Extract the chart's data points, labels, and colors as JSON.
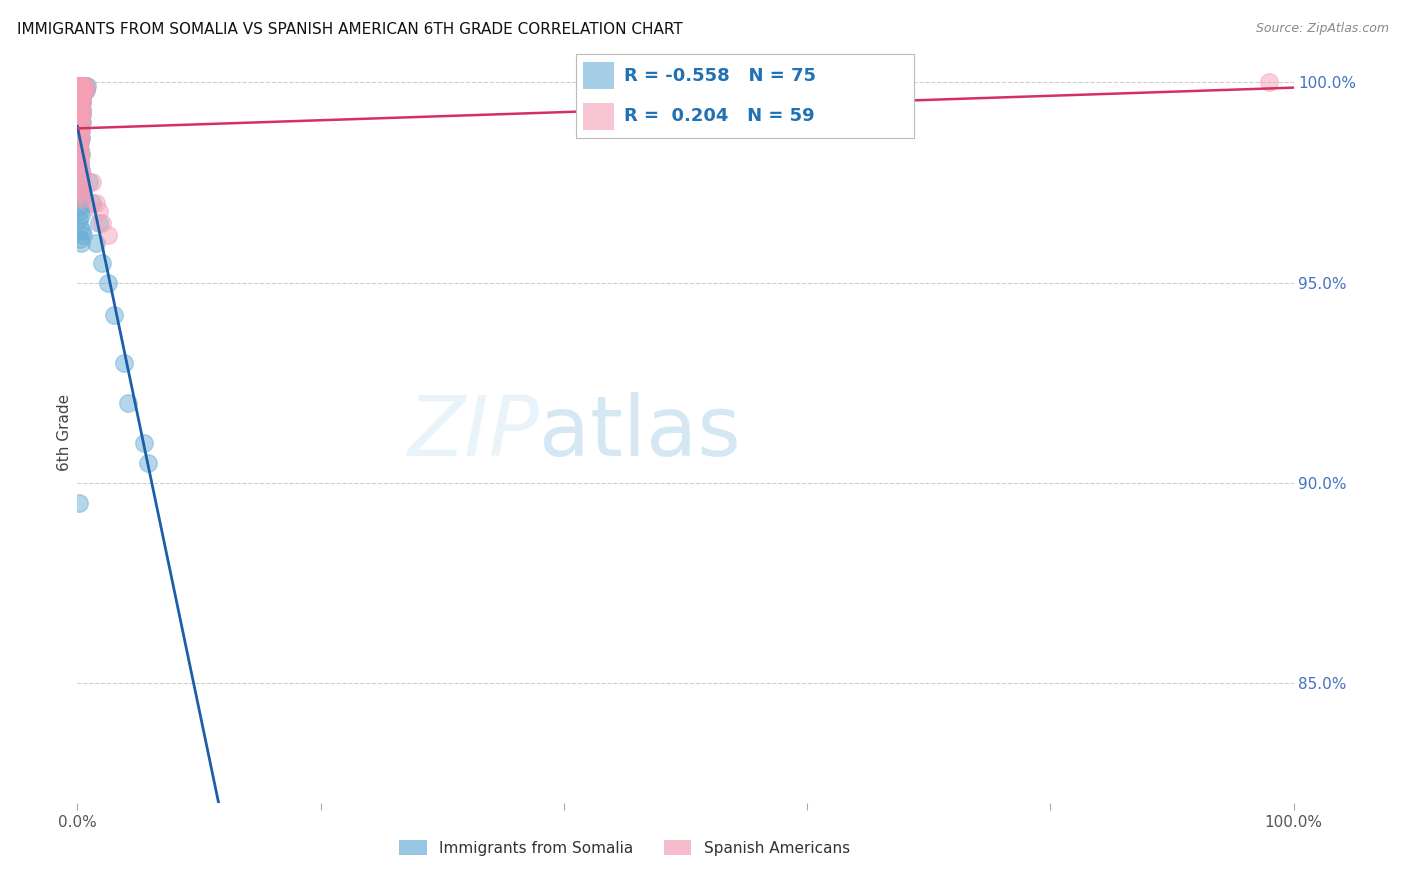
{
  "title": "IMMIGRANTS FROM SOMALIA VS SPANISH AMERICAN 6TH GRADE CORRELATION CHART",
  "source": "Source: ZipAtlas.com",
  "ylabel": "6th Grade",
  "R_somalia": -0.558,
  "N_somalia": 75,
  "R_spanish": 0.204,
  "N_spanish": 59,
  "somalia_color": "#6baed6",
  "spanish_color": "#f4a0b5",
  "somalia_line_color": "#1a5fa8",
  "spanish_line_color": "#d63060",
  "background_color": "#ffffff",
  "grid_color": "#c8c8c8",
  "somalia_x": [
    0.1,
    0.2,
    0.3,
    0.1,
    0.4,
    0.2,
    0.1,
    0.3,
    0.2,
    0.5,
    0.1,
    0.2,
    0.3,
    0.1,
    0.4,
    0.2,
    0.6,
    0.3,
    0.2,
    0.4,
    0.1,
    0.2,
    0.3,
    0.4,
    0.1,
    0.2,
    0.3,
    0.1,
    0.2,
    0.5,
    0.3,
    0.2,
    0.4,
    0.1,
    0.5,
    0.6,
    0.7,
    0.2,
    0.3,
    0.4,
    0.1,
    0.2,
    0.3,
    0.8,
    0.2,
    0.3,
    0.4,
    0.1,
    0.2,
    0.3,
    1.0,
    1.2,
    1.5,
    1.8,
    2.0,
    2.5,
    3.0,
    3.8,
    0.1,
    0.2,
    0.3,
    0.4,
    0.1,
    0.2,
    0.3,
    4.2,
    0.1,
    0.2,
    0.4,
    0.5,
    5.5,
    5.8,
    0.2,
    0.3,
    0.1
  ],
  "somalia_y": [
    99.9,
    99.8,
    99.9,
    99.7,
    99.8,
    99.6,
    99.9,
    99.8,
    99.7,
    99.9,
    99.6,
    99.8,
    99.9,
    99.5,
    99.7,
    99.4,
    99.9,
    99.8,
    99.3,
    99.6,
    99.2,
    99.1,
    99.7,
    99.5,
    99.0,
    98.9,
    99.4,
    98.8,
    98.7,
    99.8,
    98.6,
    98.5,
    99.3,
    98.4,
    99.7,
    99.9,
    99.8,
    98.3,
    98.2,
    99.2,
    98.1,
    98.0,
    99.1,
    99.9,
    97.9,
    97.8,
    99.0,
    97.7,
    97.6,
    98.8,
    97.5,
    97.0,
    96.0,
    96.5,
    95.5,
    95.0,
    94.2,
    93.0,
    97.4,
    97.3,
    97.2,
    97.1,
    96.9,
    96.8,
    96.7,
    92.0,
    96.6,
    96.4,
    96.3,
    96.2,
    91.0,
    90.5,
    96.1,
    96.0,
    89.5
  ],
  "spanish_x": [
    0.1,
    0.2,
    0.3,
    0.1,
    0.4,
    0.2,
    0.1,
    0.3,
    0.2,
    0.5,
    0.1,
    0.2,
    0.3,
    0.1,
    0.4,
    0.2,
    0.6,
    0.3,
    0.2,
    0.4,
    0.1,
    0.2,
    0.3,
    0.4,
    0.1,
    0.2,
    0.3,
    0.1,
    0.2,
    0.5,
    0.3,
    0.2,
    0.4,
    0.1,
    0.5,
    0.6,
    0.7,
    0.2,
    0.3,
    0.4,
    1.2,
    1.5,
    1.8,
    2.0,
    2.5,
    0.1,
    0.2,
    0.3,
    0.1,
    0.2,
    0.3,
    0.4,
    0.1,
    0.2,
    0.3,
    98.0,
    0.1,
    0.2,
    0.4
  ],
  "spanish_y": [
    99.9,
    99.8,
    99.9,
    99.7,
    99.8,
    99.6,
    99.9,
    99.8,
    99.7,
    99.9,
    99.6,
    99.8,
    99.9,
    99.5,
    99.7,
    99.4,
    99.9,
    99.8,
    99.3,
    99.6,
    99.2,
    99.1,
    99.7,
    99.5,
    99.0,
    98.9,
    99.4,
    98.8,
    98.7,
    99.8,
    98.6,
    98.5,
    99.3,
    98.4,
    99.7,
    99.9,
    99.8,
    98.3,
    98.2,
    99.2,
    97.5,
    97.0,
    96.8,
    96.5,
    96.2,
    98.1,
    98.0,
    99.1,
    97.9,
    97.8,
    99.0,
    97.7,
    97.6,
    97.3,
    98.8,
    100.0,
    97.4,
    97.2,
    97.1
  ],
  "xlim": [
    0.0,
    100.0
  ],
  "ylim": [
    82.0,
    100.5
  ],
  "yticks": [
    85.0,
    90.0,
    95.0,
    100.0
  ],
  "ylabels": [
    "85.0%",
    "90.0%",
    "95.0%",
    "100.0%"
  ],
  "xticks": [
    0.0,
    20.0,
    40.0,
    60.0,
    80.0,
    100.0
  ],
  "xlabels": [
    "0.0%",
    "",
    "",
    "",
    "",
    "100.0%"
  ],
  "somalia_line_x_solid_end": 35.0,
  "somalia_line_x_dash_end": 55.0,
  "spanish_line_x_start": 0.0,
  "spanish_line_x_end": 100.0
}
